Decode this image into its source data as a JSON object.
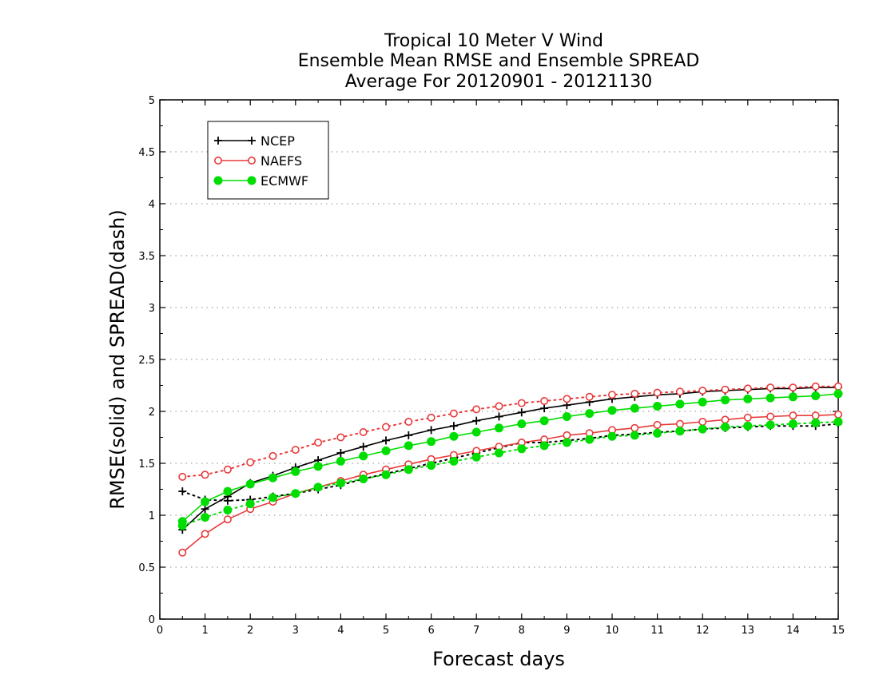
{
  "chart_data": {
    "type": "line",
    "title": [
      "Tropical 10 Meter V Wind",
      "Ensemble Mean RMSE and Ensemble SPREAD",
      "Average For 20120901 - 20121130"
    ],
    "xlabel": "Forecast days",
    "ylabel": "RMSE(solid) and SPREAD(dash)",
    "xlim": [
      0,
      15
    ],
    "ylim": [
      0,
      5
    ],
    "xticks": [
      0,
      1,
      2,
      3,
      4,
      5,
      6,
      7,
      8,
      9,
      10,
      11,
      12,
      13,
      14,
      15
    ],
    "yticks": [
      0,
      0.5,
      1,
      1.5,
      2,
      2.5,
      3,
      3.5,
      4,
      4.5,
      5
    ],
    "ytick_labels": [
      "0",
      "0.5",
      "1",
      "1.5",
      "2",
      "2.5",
      "3",
      "3.5",
      "4",
      "4.5",
      "5"
    ],
    "grid": "horizontal dotted",
    "legend_position": "top-left",
    "x": [
      0.5,
      1.0,
      1.5,
      2.0,
      2.5,
      3.0,
      3.5,
      4.0,
      4.5,
      5.0,
      5.5,
      6.0,
      6.5,
      7.0,
      7.5,
      8.0,
      8.5,
      9.0,
      9.5,
      10.0,
      10.5,
      11.0,
      11.5,
      12.0,
      12.5,
      13.0,
      13.5,
      14.0,
      14.5,
      15.0
    ],
    "series": [
      {
        "name": "NCEP",
        "color": "#000000",
        "marker": "plus",
        "rmse": [
          0.86,
          1.06,
          1.18,
          1.31,
          1.38,
          1.46,
          1.53,
          1.6,
          1.66,
          1.72,
          1.77,
          1.82,
          1.86,
          1.91,
          1.95,
          1.99,
          2.03,
          2.06,
          2.09,
          2.12,
          2.14,
          2.16,
          2.17,
          2.19,
          2.2,
          2.21,
          2.22,
          2.22,
          2.23,
          2.23
        ],
        "spread": [
          1.23,
          1.15,
          1.14,
          1.15,
          1.18,
          1.21,
          1.25,
          1.29,
          1.35,
          1.4,
          1.45,
          1.5,
          1.55,
          1.6,
          1.65,
          1.7,
          1.7,
          1.72,
          1.74,
          1.77,
          1.78,
          1.8,
          1.81,
          1.83,
          1.84,
          1.85,
          1.86,
          1.86,
          1.86,
          1.88
        ]
      },
      {
        "name": "NAEFS",
        "color": "#e83a3a",
        "marker": "open-circle",
        "rmse": [
          0.64,
          0.82,
          0.96,
          1.06,
          1.13,
          1.21,
          1.27,
          1.33,
          1.39,
          1.44,
          1.49,
          1.54,
          1.58,
          1.62,
          1.66,
          1.7,
          1.73,
          1.77,
          1.79,
          1.82,
          1.84,
          1.87,
          1.88,
          1.9,
          1.92,
          1.94,
          1.95,
          1.96,
          1.96,
          1.97
        ],
        "spread": [
          1.37,
          1.39,
          1.44,
          1.51,
          1.57,
          1.63,
          1.7,
          1.75,
          1.8,
          1.85,
          1.9,
          1.94,
          1.98,
          2.02,
          2.05,
          2.08,
          2.1,
          2.12,
          2.14,
          2.16,
          2.17,
          2.18,
          2.19,
          2.2,
          2.21,
          2.22,
          2.23,
          2.23,
          2.24,
          2.24
        ]
      },
      {
        "name": "ECMWF",
        "color": "#00dd00",
        "marker": "filled-circle",
        "rmse": [
          0.94,
          1.13,
          1.23,
          1.3,
          1.36,
          1.42,
          1.47,
          1.52,
          1.57,
          1.62,
          1.67,
          1.71,
          1.76,
          1.8,
          1.84,
          1.88,
          1.91,
          1.95,
          1.98,
          2.01,
          2.03,
          2.05,
          2.07,
          2.09,
          2.11,
          2.12,
          2.13,
          2.14,
          2.15,
          2.17
        ],
        "spread": [
          0.9,
          0.98,
          1.05,
          1.11,
          1.17,
          1.21,
          1.27,
          1.31,
          1.35,
          1.39,
          1.44,
          1.48,
          1.52,
          1.56,
          1.6,
          1.64,
          1.67,
          1.7,
          1.73,
          1.76,
          1.77,
          1.79,
          1.81,
          1.83,
          1.85,
          1.86,
          1.87,
          1.88,
          1.89,
          1.9
        ]
      }
    ]
  }
}
